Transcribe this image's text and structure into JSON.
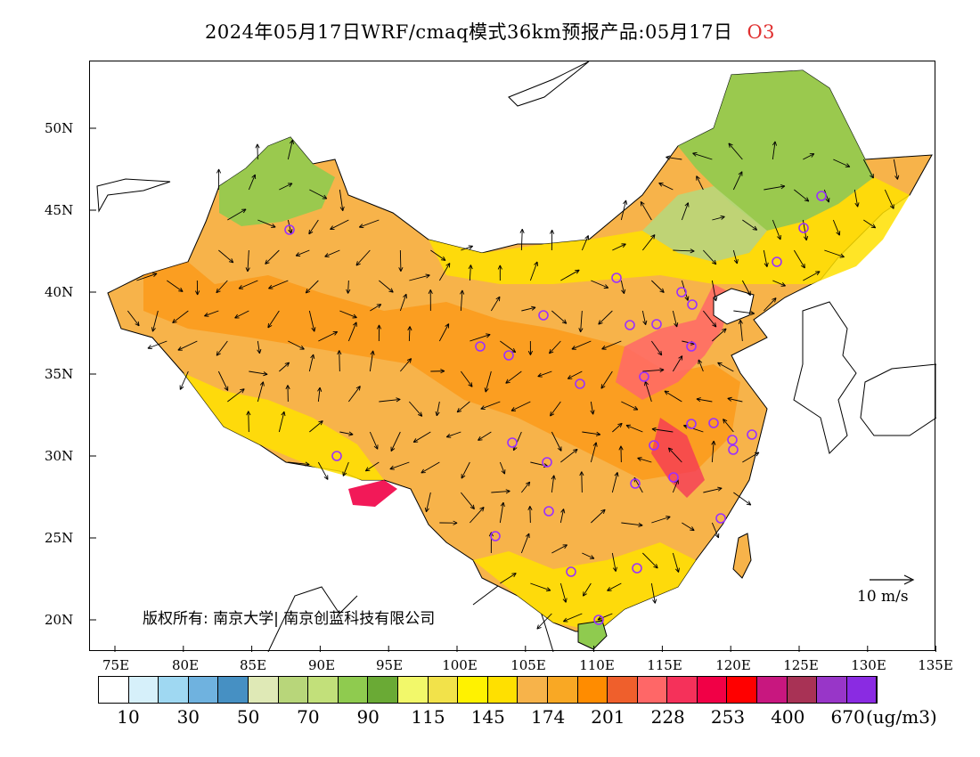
{
  "title": {
    "main": "2024年05月17日WRF/cmaq模式36km预报产品:05月17日",
    "variable": "O3",
    "variable_color": "#e03030"
  },
  "map": {
    "region": "China",
    "lat_labels": [
      "50N",
      "45N",
      "40N",
      "35N",
      "30N",
      "25N",
      "20N"
    ],
    "lon_labels": [
      "75E",
      "80E",
      "85E",
      "90E",
      "95E",
      "100E",
      "105E",
      "110E",
      "115E",
      "120E",
      "125E",
      "130E",
      "135E"
    ],
    "copyright": "版权所有: 南京大学| 南京创蓝科技有限公司",
    "wind_reference": "10 m/s",
    "wind_arrow_icon": "wind-vector-arrow-icon",
    "station_marker_icon": "city-station-circle-icon",
    "station_marker_color": "#9b30ff"
  },
  "colorbar": {
    "colors": [
      "#ffffff",
      "#d6f0fa",
      "#9fd8f2",
      "#6fb2df",
      "#4690c3",
      "#dfe9b6",
      "#b8d67a",
      "#c2e07a",
      "#8fcb4f",
      "#6aaa35",
      "#f2f86a",
      "#f2e24a",
      "#fff200",
      "#ffe000",
      "#f7b34a",
      "#f9a824",
      "#ff8c00",
      "#ef5f2c",
      "#ff6767",
      "#f5315a",
      "#f10046",
      "#ff0000",
      "#c8177f",
      "#a83255",
      "#9836c8",
      "#8a2be2"
    ],
    "labels": [
      "10",
      "30",
      "50",
      "70",
      "90",
      "115",
      "145",
      "174",
      "201",
      "228",
      "253",
      "400",
      "670"
    ],
    "unit": "(ug/m3)"
  }
}
